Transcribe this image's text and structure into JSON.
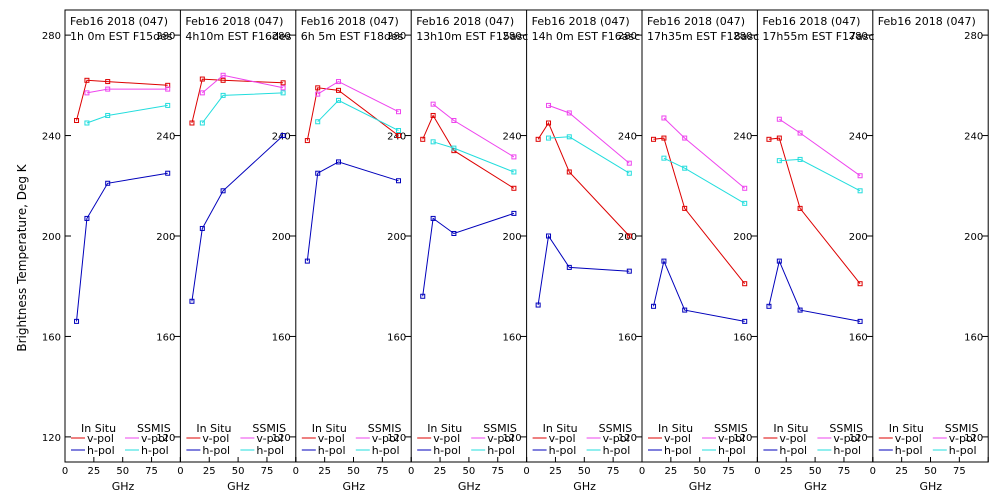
{
  "ylabel": "Brightness Temperature, Deg K",
  "xlabel": "GHz",
  "legend": {
    "insitu": "In Situ",
    "ssmis": "SSMIS",
    "vpol": "v-pol",
    "hpol": "h-pol"
  },
  "colors": {
    "insitu_v": "#dd0000",
    "insitu_h": "#0000bb",
    "ssmis_v": "#ee44ee",
    "ssmis_h": "#22dddd"
  },
  "chart_data": {
    "type": "line",
    "ylim": [
      110,
      290
    ],
    "xlim": [
      0,
      100
    ],
    "yticks": [
      120,
      160,
      200,
      240,
      280
    ],
    "xticks": [
      0,
      25,
      50,
      75,
      100
    ],
    "panels": [
      {
        "line1": "Feb16 2018 (047)",
        "line2": "1h 0m  EST F15des",
        "insitu_v": [
          [
            10,
            246
          ],
          [
            19,
            262
          ],
          [
            37,
            261.5
          ],
          [
            89,
            260
          ]
        ],
        "insitu_h": [
          [
            10,
            166
          ],
          [
            19,
            207
          ],
          [
            37,
            221
          ],
          [
            89,
            225
          ]
        ],
        "ssmis_v": [
          [
            19,
            257
          ],
          [
            37,
            258.5
          ],
          [
            89,
            258.5
          ]
        ],
        "ssmis_h": [
          [
            19,
            245
          ],
          [
            37,
            248
          ],
          [
            89,
            252
          ]
        ]
      },
      {
        "line1": "Feb16 2018 (047)",
        "line2": "4h10m  EST F16des",
        "insitu_v": [
          [
            10,
            245
          ],
          [
            19,
            262.5
          ],
          [
            37,
            262
          ],
          [
            89,
            261
          ]
        ],
        "insitu_h": [
          [
            10,
            174
          ],
          [
            19,
            203
          ],
          [
            37,
            218
          ],
          [
            89,
            240
          ]
        ],
        "ssmis_v": [
          [
            19,
            257
          ],
          [
            37,
            264
          ],
          [
            89,
            259
          ]
        ],
        "ssmis_h": [
          [
            19,
            245
          ],
          [
            37,
            256
          ],
          [
            89,
            257
          ]
        ]
      },
      {
        "line1": "Feb16 2018 (047)",
        "line2": "6h 5m  EST F18des",
        "insitu_v": [
          [
            10,
            238
          ],
          [
            19,
            259
          ],
          [
            37,
            258
          ],
          [
            89,
            240
          ]
        ],
        "insitu_h": [
          [
            10,
            190
          ],
          [
            19,
            225
          ],
          [
            37,
            229.5
          ],
          [
            89,
            222
          ]
        ],
        "ssmis_v": [
          [
            19,
            256.5
          ],
          [
            37,
            261.5
          ],
          [
            89,
            249.5
          ]
        ],
        "ssmis_h": [
          [
            19,
            245.5
          ],
          [
            37,
            254
          ],
          [
            89,
            242
          ]
        ]
      },
      {
        "line1": "Feb16 2018 (047)",
        "line2": "13h10m  EST F15asc",
        "insitu_v": [
          [
            10,
            238.5
          ],
          [
            19,
            248
          ],
          [
            37,
            234
          ],
          [
            89,
            219
          ]
        ],
        "insitu_h": [
          [
            10,
            176
          ],
          [
            19,
            207
          ],
          [
            37,
            201
          ],
          [
            89,
            209
          ]
        ],
        "ssmis_v": [
          [
            19,
            252.5
          ],
          [
            37,
            246
          ],
          [
            89,
            231.5
          ]
        ],
        "ssmis_h": [
          [
            19,
            237.5
          ],
          [
            37,
            235
          ],
          [
            89,
            225.5
          ]
        ]
      },
      {
        "line1": "Feb16 2018 (047)",
        "line2": "14h 0m  EST F16asc",
        "insitu_v": [
          [
            10,
            238.5
          ],
          [
            19,
            245
          ],
          [
            37,
            225.5
          ],
          [
            89,
            200
          ]
        ],
        "insitu_h": [
          [
            10,
            172.5
          ],
          [
            19,
            200
          ],
          [
            37,
            187.5
          ],
          [
            89,
            186
          ]
        ],
        "ssmis_v": [
          [
            19,
            252
          ],
          [
            37,
            249
          ],
          [
            89,
            229
          ]
        ],
        "ssmis_h": [
          [
            19,
            239
          ],
          [
            37,
            239.5
          ],
          [
            89,
            225
          ]
        ]
      },
      {
        "line1": "Feb16 2018 (047)",
        "line2": "17h35m  EST F18asc",
        "insitu_v": [
          [
            10,
            238.5
          ],
          [
            19,
            239
          ],
          [
            37,
            211
          ],
          [
            89,
            181
          ]
        ],
        "insitu_h": [
          [
            10,
            172
          ],
          [
            19,
            190
          ],
          [
            37,
            170.5
          ],
          [
            89,
            166
          ]
        ],
        "ssmis_v": [
          [
            19,
            247
          ],
          [
            37,
            239
          ],
          [
            89,
            219
          ]
        ],
        "ssmis_h": [
          [
            19,
            231
          ],
          [
            37,
            227
          ],
          [
            89,
            213
          ]
        ]
      },
      {
        "line1": "Feb16 2018 (047)",
        "line2": "17h55m  EST F17asc",
        "insitu_v": [
          [
            10,
            238.5
          ],
          [
            19,
            239
          ],
          [
            37,
            211
          ],
          [
            89,
            181
          ]
        ],
        "insitu_h": [
          [
            10,
            172
          ],
          [
            19,
            190
          ],
          [
            37,
            170.5
          ],
          [
            89,
            166
          ]
        ],
        "ssmis_v": [
          [
            19,
            246.5
          ],
          [
            37,
            241
          ],
          [
            89,
            224
          ]
        ],
        "ssmis_h": [
          [
            19,
            230
          ],
          [
            37,
            230.5
          ],
          [
            89,
            218
          ]
        ]
      },
      {
        "line1": "Feb16 2018 (047)",
        "line2": "",
        "insitu_v": [],
        "insitu_h": [],
        "ssmis_v": [],
        "ssmis_h": []
      }
    ]
  }
}
